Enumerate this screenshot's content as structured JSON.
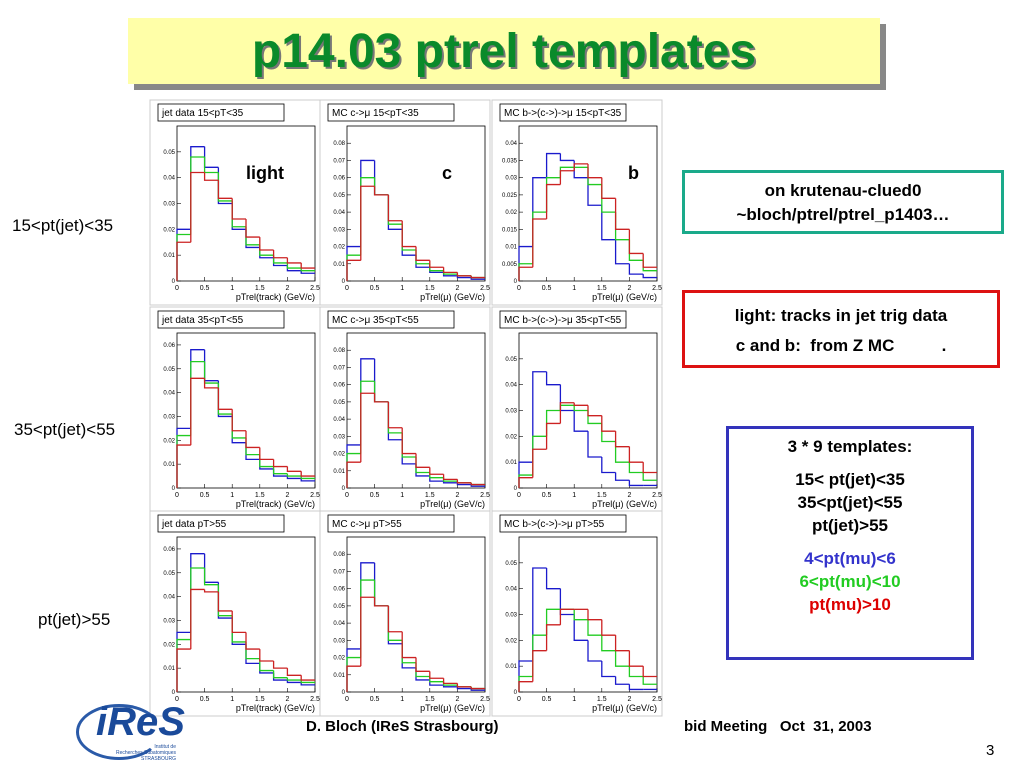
{
  "header": {
    "title": "p14.03 ptrel templates"
  },
  "column_labels": [
    "light",
    "c",
    "b"
  ],
  "row_labels": [
    "15<pt(jet)<35",
    "35<pt(jet)<55",
    "pt(jet)>55"
  ],
  "location_box": {
    "lines": [
      "on krutenau-clued0",
      "~bloch/ptrel/ptrel_p1403…"
    ]
  },
  "source_box": {
    "lines": [
      "light: tracks in jet trig data",
      "c and b:  from Z MC          ."
    ]
  },
  "templates_box": {
    "heading": "3 * 9 templates:",
    "jet_bins": [
      "15< pt(jet)<35",
      "35<pt(jet)<55",
      "pt(jet)>55"
    ],
    "mu_bins": [
      "4<pt(mu)<6",
      "6<pt(mu)<10",
      "pt(mu)>10"
    ]
  },
  "footer": {
    "author": "D. Bloch (IReS Strasbourg)",
    "meeting": "bid Meeting   Oct  31, 2003",
    "page": "3",
    "logo": "iReS",
    "logo_lines": [
      "Institut de",
      "Recherches Subatomiques",
      "STRASBOURG"
    ]
  },
  "chart_data": [
    {
      "type": "histogram",
      "title": "jet data 15<pT<35",
      "xlabel": "pTrel(track) (GeV/c)",
      "bins": [
        0,
        0.25,
        0.5,
        0.75,
        1,
        1.25,
        1.5,
        1.75,
        2,
        2.25,
        2.5
      ],
      "xlim": [
        0,
        2.5
      ],
      "xticks": [
        0,
        0.5,
        1,
        1.5,
        2,
        2.5
      ],
      "ylim": [
        0,
        0.06
      ],
      "yticks": [
        0,
        0.01,
        0.02,
        0.03,
        0.04,
        0.05
      ],
      "series": [
        {
          "color": "#1a1acc",
          "values": [
            0.02,
            0.052,
            0.044,
            0.03,
            0.02,
            0.013,
            0.009,
            0.006,
            0.004,
            0.003
          ]
        },
        {
          "color": "#22cc22",
          "values": [
            0.018,
            0.048,
            0.042,
            0.031,
            0.021,
            0.014,
            0.01,
            0.007,
            0.005,
            0.004
          ]
        },
        {
          "color": "#cc2222",
          "values": [
            0.015,
            0.042,
            0.039,
            0.032,
            0.024,
            0.017,
            0.012,
            0.009,
            0.007,
            0.005
          ]
        }
      ]
    },
    {
      "type": "histogram",
      "title": "MC c->μ 15<pT<35",
      "xlabel": "pTrel(μ) (GeV/c)",
      "bins": [
        0,
        0.25,
        0.5,
        0.75,
        1,
        1.25,
        1.5,
        1.75,
        2,
        2.25,
        2.5
      ],
      "xlim": [
        0,
        2.5
      ],
      "xticks": [
        0,
        0.5,
        1,
        1.5,
        2,
        2.5
      ],
      "ylim": [
        0,
        0.09
      ],
      "yticks": [
        0,
        0.01,
        0.02,
        0.03,
        0.04,
        0.05,
        0.06,
        0.07,
        0.08
      ],
      "series": [
        {
          "color": "#1a1acc",
          "values": [
            0.02,
            0.07,
            0.05,
            0.03,
            0.015,
            0.008,
            0.005,
            0.003,
            0.002,
            0.001
          ]
        },
        {
          "color": "#22cc22",
          "values": [
            0.015,
            0.06,
            0.05,
            0.033,
            0.018,
            0.01,
            0.006,
            0.004,
            0.003,
            0.002
          ]
        },
        {
          "color": "#cc2222",
          "values": [
            0.012,
            0.055,
            0.05,
            0.035,
            0.02,
            0.012,
            0.008,
            0.005,
            0.003,
            0.002
          ]
        }
      ]
    },
    {
      "type": "histogram",
      "title": "MC b->(c->)->μ 15<pT<35",
      "xlabel": "pTrel(μ) (GeV/c)",
      "bins": [
        0,
        0.25,
        0.5,
        0.75,
        1,
        1.25,
        1.5,
        1.75,
        2,
        2.25,
        2.5
      ],
      "xlim": [
        0,
        2.5
      ],
      "xticks": [
        0,
        0.5,
        1,
        1.5,
        2,
        2.5
      ],
      "ylim": [
        0,
        0.045
      ],
      "yticks": [
        0,
        0.005,
        0.01,
        0.015,
        0.02,
        0.025,
        0.03,
        0.035,
        0.04
      ],
      "series": [
        {
          "color": "#1a1acc",
          "values": [
            0.01,
            0.03,
            0.037,
            0.035,
            0.03,
            0.022,
            0.012,
            0.005,
            0.002,
            0.001
          ]
        },
        {
          "color": "#22cc22",
          "values": [
            0.005,
            0.02,
            0.03,
            0.033,
            0.033,
            0.028,
            0.02,
            0.012,
            0.006,
            0.003
          ]
        },
        {
          "color": "#cc2222",
          "values": [
            0.004,
            0.018,
            0.028,
            0.032,
            0.034,
            0.03,
            0.024,
            0.015,
            0.008,
            0.004
          ]
        }
      ]
    },
    {
      "type": "histogram",
      "title": "jet data 35<pT<55",
      "xlabel": "pTrel(track) (GeV/c)",
      "bins": [
        0,
        0.25,
        0.5,
        0.75,
        1,
        1.25,
        1.5,
        1.75,
        2,
        2.25,
        2.5
      ],
      "xlim": [
        0,
        2.5
      ],
      "xticks": [
        0,
        0.5,
        1,
        1.5,
        2,
        2.5
      ],
      "ylim": [
        0,
        0.065
      ],
      "yticks": [
        0,
        0.01,
        0.02,
        0.03,
        0.04,
        0.05,
        0.06
      ],
      "series": [
        {
          "color": "#1a1acc",
          "values": [
            0.025,
            0.058,
            0.045,
            0.03,
            0.019,
            0.012,
            0.008,
            0.005,
            0.004,
            0.003
          ]
        },
        {
          "color": "#22cc22",
          "values": [
            0.022,
            0.053,
            0.044,
            0.031,
            0.021,
            0.014,
            0.009,
            0.006,
            0.005,
            0.004
          ]
        },
        {
          "color": "#cc2222",
          "values": [
            0.018,
            0.046,
            0.042,
            0.033,
            0.024,
            0.017,
            0.012,
            0.009,
            0.007,
            0.005
          ]
        }
      ]
    },
    {
      "type": "histogram",
      "title": "MC c->μ 35<pT<55",
      "xlabel": "pTrel(μ) (GeV/c)",
      "bins": [
        0,
        0.25,
        0.5,
        0.75,
        1,
        1.25,
        1.5,
        1.75,
        2,
        2.25,
        2.5
      ],
      "xlim": [
        0,
        2.5
      ],
      "xticks": [
        0,
        0.5,
        1,
        1.5,
        2,
        2.5
      ],
      "ylim": [
        0,
        0.09
      ],
      "yticks": [
        0,
        0.01,
        0.02,
        0.03,
        0.04,
        0.05,
        0.06,
        0.07,
        0.08
      ],
      "series": [
        {
          "color": "#1a1acc",
          "values": [
            0.025,
            0.075,
            0.05,
            0.028,
            0.014,
            0.007,
            0.004,
            0.003,
            0.002,
            0.001
          ]
        },
        {
          "color": "#22cc22",
          "values": [
            0.02,
            0.062,
            0.05,
            0.032,
            0.018,
            0.009,
            0.006,
            0.004,
            0.003,
            0.002
          ]
        },
        {
          "color": "#cc2222",
          "values": [
            0.015,
            0.055,
            0.05,
            0.035,
            0.02,
            0.012,
            0.008,
            0.005,
            0.003,
            0.002
          ]
        }
      ]
    },
    {
      "type": "histogram",
      "title": "MC b->(c->)->μ 35<pT<55",
      "xlabel": "pTrel(μ) (GeV/c)",
      "bins": [
        0,
        0.25,
        0.5,
        0.75,
        1,
        1.25,
        1.5,
        1.75,
        2,
        2.25,
        2.5
      ],
      "xlim": [
        0,
        2.5
      ],
      "xticks": [
        0,
        0.5,
        1,
        1.5,
        2,
        2.5
      ],
      "ylim": [
        0,
        0.06
      ],
      "yticks": [
        0,
        0.01,
        0.02,
        0.03,
        0.04,
        0.05
      ],
      "series": [
        {
          "color": "#1a1acc",
          "values": [
            0.01,
            0.045,
            0.04,
            0.03,
            0.022,
            0.012,
            0.006,
            0.003,
            0.001,
            0.001
          ]
        },
        {
          "color": "#22cc22",
          "values": [
            0.005,
            0.02,
            0.03,
            0.032,
            0.03,
            0.025,
            0.018,
            0.01,
            0.006,
            0.003
          ]
        },
        {
          "color": "#cc2222",
          "values": [
            0.004,
            0.015,
            0.025,
            0.033,
            0.032,
            0.028,
            0.022,
            0.016,
            0.01,
            0.006
          ]
        }
      ]
    },
    {
      "type": "histogram",
      "title": "jet data pT>55",
      "xlabel": "pTrel(track) (GeV/c)",
      "bins": [
        0,
        0.25,
        0.5,
        0.75,
        1,
        1.25,
        1.5,
        1.75,
        2,
        2.25,
        2.5
      ],
      "xlim": [
        0,
        2.5
      ],
      "xticks": [
        0,
        0.5,
        1,
        1.5,
        2,
        2.5
      ],
      "ylim": [
        0,
        0.065
      ],
      "yticks": [
        0,
        0.01,
        0.02,
        0.03,
        0.04,
        0.05,
        0.06
      ],
      "series": [
        {
          "color": "#1a1acc",
          "values": [
            0.025,
            0.058,
            0.046,
            0.031,
            0.02,
            0.012,
            0.008,
            0.005,
            0.004,
            0.003
          ]
        },
        {
          "color": "#22cc22",
          "values": [
            0.022,
            0.052,
            0.045,
            0.032,
            0.021,
            0.014,
            0.009,
            0.006,
            0.005,
            0.004
          ]
        },
        {
          "color": "#cc2222",
          "values": [
            0.018,
            0.043,
            0.042,
            0.034,
            0.025,
            0.018,
            0.013,
            0.01,
            0.007,
            0.005
          ]
        }
      ]
    },
    {
      "type": "histogram",
      "title": "MC c->μ pT>55",
      "xlabel": "pTrel(μ) (GeV/c)",
      "bins": [
        0,
        0.25,
        0.5,
        0.75,
        1,
        1.25,
        1.5,
        1.75,
        2,
        2.25,
        2.5
      ],
      "xlim": [
        0,
        2.5
      ],
      "xticks": [
        0,
        0.5,
        1,
        1.5,
        2,
        2.5
      ],
      "ylim": [
        0,
        0.09
      ],
      "yticks": [
        0,
        0.01,
        0.02,
        0.03,
        0.04,
        0.05,
        0.06,
        0.07,
        0.08
      ],
      "series": [
        {
          "color": "#1a1acc",
          "values": [
            0.025,
            0.075,
            0.05,
            0.028,
            0.014,
            0.007,
            0.004,
            0.003,
            0.002,
            0.001
          ]
        },
        {
          "color": "#22cc22",
          "values": [
            0.02,
            0.065,
            0.05,
            0.03,
            0.017,
            0.009,
            0.006,
            0.004,
            0.003,
            0.002
          ]
        },
        {
          "color": "#cc2222",
          "values": [
            0.015,
            0.055,
            0.05,
            0.035,
            0.02,
            0.012,
            0.008,
            0.005,
            0.003,
            0.002
          ]
        }
      ]
    },
    {
      "type": "histogram",
      "title": "MC b->(c->)->μ pT>55",
      "xlabel": "pTrel(μ) (GeV/c)",
      "bins": [
        0,
        0.25,
        0.5,
        0.75,
        1,
        1.25,
        1.5,
        1.75,
        2,
        2.25,
        2.5
      ],
      "xlim": [
        0,
        2.5
      ],
      "xticks": [
        0,
        0.5,
        1,
        1.5,
        2,
        2.5
      ],
      "ylim": [
        0,
        0.06
      ],
      "yticks": [
        0,
        0.01,
        0.02,
        0.03,
        0.04,
        0.05
      ],
      "series": [
        {
          "color": "#1a1acc",
          "values": [
            0.012,
            0.048,
            0.04,
            0.03,
            0.02,
            0.012,
            0.006,
            0.003,
            0.001,
            0.001
          ]
        },
        {
          "color": "#22cc22",
          "values": [
            0.006,
            0.022,
            0.032,
            0.032,
            0.028,
            0.022,
            0.016,
            0.01,
            0.006,
            0.003
          ]
        },
        {
          "color": "#cc2222",
          "values": [
            0.004,
            0.016,
            0.026,
            0.032,
            0.032,
            0.028,
            0.022,
            0.016,
            0.01,
            0.006
          ]
        }
      ]
    }
  ]
}
